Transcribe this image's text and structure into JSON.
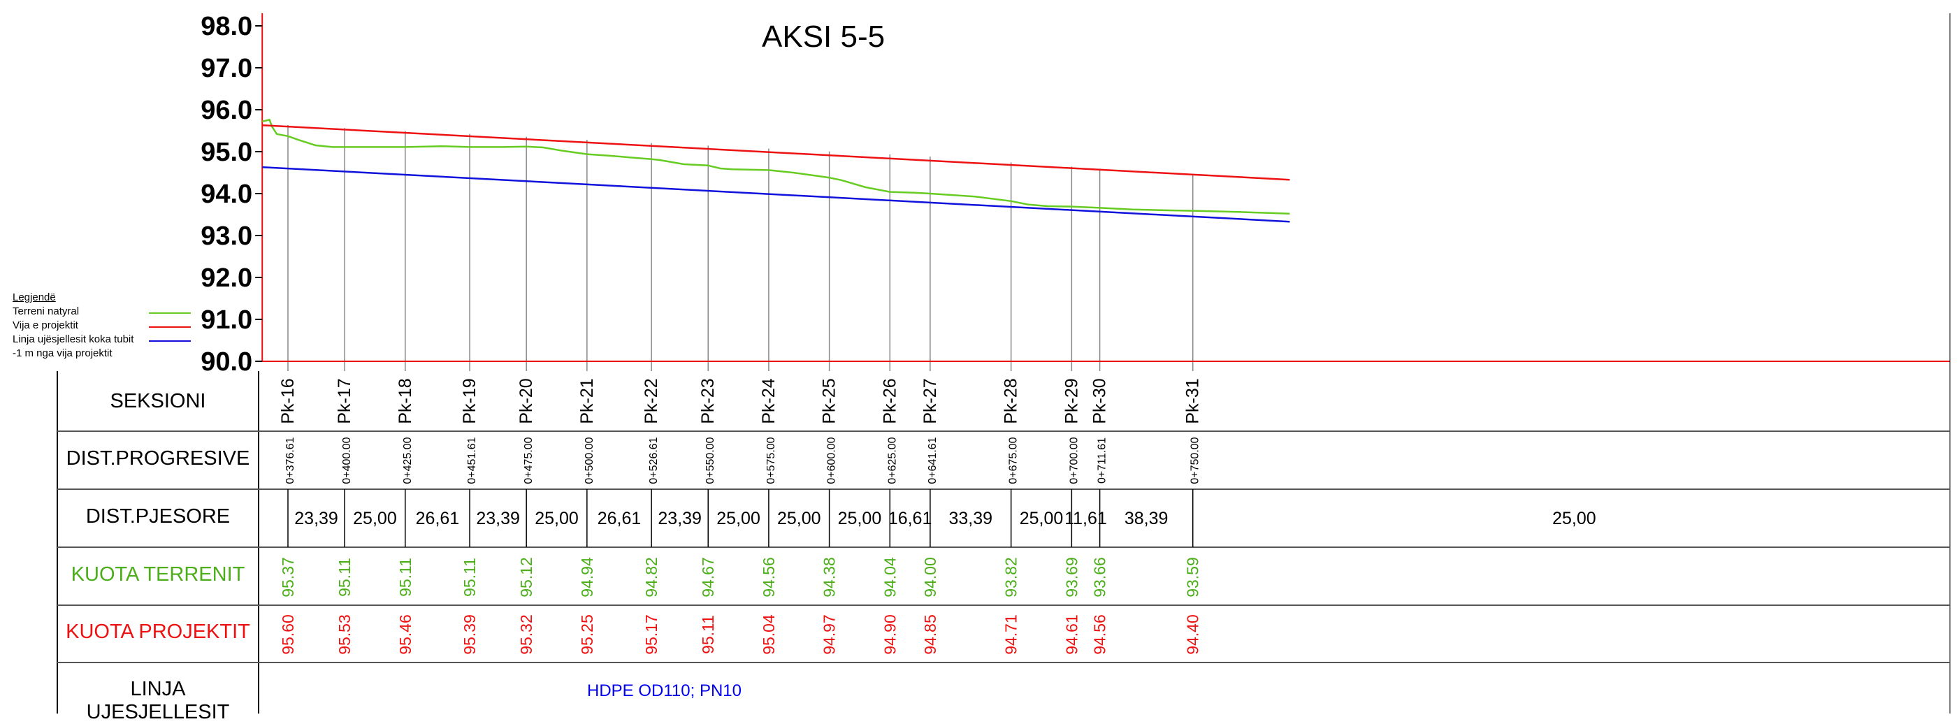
{
  "title": "AKSI 5-5",
  "legend": {
    "header": "Legjendë",
    "items": [
      {
        "label": "Terreni natyral",
        "color": "#66cc22"
      },
      {
        "label": "Vija e projektit",
        "color": "#ee1111"
      },
      {
        "label": "Linja ujësjellesit koka tubit",
        "color": "#1111dd"
      },
      {
        "label": "-1 m nga vija projektit",
        "color": ""
      }
    ]
  },
  "y_axis": {
    "min": 90.0,
    "max": 98.0,
    "ticks": [
      "98.0",
      "97.0",
      "96.0",
      "95.0",
      "94.0",
      "93.0",
      "92.0",
      "91.0",
      "90.0"
    ]
  },
  "table": {
    "row_labels": {
      "seksioni": "SEKSIONI",
      "dist_progresive": "DIST.PROGRESIVE",
      "dist_pjesore": "DIST.PJESORE",
      "kuota_terrenit": "KUOTA TERRENIT",
      "kuota_projektit": "KUOTA PROJEKTIT",
      "linja": "LINJA UJESJELLESIT"
    },
    "pipe_label": "HDPE OD110; PN10",
    "sections": [
      {
        "name": "Pk-16",
        "chainage": 376.61,
        "prog": "0+376.61",
        "terrain": "95.37",
        "project": "95.60"
      },
      {
        "name": "Pk-17",
        "chainage": 400.0,
        "prog": "0+400.00",
        "terrain": "95.11",
        "project": "95.53"
      },
      {
        "name": "Pk-18",
        "chainage": 425.0,
        "prog": "0+425.00",
        "terrain": "95.11",
        "project": "95.46"
      },
      {
        "name": "Pk-19",
        "chainage": 451.61,
        "prog": "0+451.61",
        "terrain": "95.11",
        "project": "95.39"
      },
      {
        "name": "Pk-20",
        "chainage": 475.0,
        "prog": "0+475.00",
        "terrain": "95.12",
        "project": "95.32"
      },
      {
        "name": "Pk-21",
        "chainage": 500.0,
        "prog": "0+500.00",
        "terrain": "94.94",
        "project": "95.25"
      },
      {
        "name": "Pk-22",
        "chainage": 526.61,
        "prog": "0+526.61",
        "terrain": "94.82",
        "project": "95.17"
      },
      {
        "name": "Pk-23",
        "chainage": 550.0,
        "prog": "0+550.00",
        "terrain": "94.67",
        "project": "95.11"
      },
      {
        "name": "Pk-24",
        "chainage": 575.0,
        "prog": "0+575.00",
        "terrain": "94.56",
        "project": "95.04"
      },
      {
        "name": "Pk-25",
        "chainage": 600.0,
        "prog": "0+600.00",
        "terrain": "94.38",
        "project": "94.97"
      },
      {
        "name": "Pk-26",
        "chainage": 625.0,
        "prog": "0+625.00",
        "terrain": "94.04",
        "project": "94.90"
      },
      {
        "name": "Pk-27",
        "chainage": 641.61,
        "prog": "0+641.61",
        "terrain": "94.00",
        "project": "94.85"
      },
      {
        "name": "Pk-28",
        "chainage": 675.0,
        "prog": "0+675.00",
        "terrain": "93.82",
        "project": "94.71"
      },
      {
        "name": "Pk-29",
        "chainage": 700.0,
        "prog": "0+700.00",
        "terrain": "93.69",
        "project": "94.61"
      },
      {
        "name": "Pk-30",
        "chainage": 711.61,
        "prog": "0+711.61",
        "terrain": "93.66",
        "project": "94.56"
      },
      {
        "name": "Pk-31",
        "chainage": 750.0,
        "prog": "0+750.00",
        "terrain": "93.59",
        "project": "94.40"
      }
    ],
    "partial_distances": [
      "23,39",
      "25,00",
      "26,61",
      "23,39",
      "25,00",
      "26,61",
      "23,39",
      "25,00",
      "25,00",
      "25,00",
      "16,61",
      "33,39",
      "25,00",
      "11,61",
      "38,39",
      "25,00"
    ]
  },
  "chart_data": {
    "type": "line",
    "title": "AKSI 5-5",
    "xlabel": "",
    "ylabel": "",
    "ylim": [
      90.0,
      98.0
    ],
    "xlim": [
      366,
      790
    ],
    "series": [
      {
        "name": "Terreni natyral",
        "color": "#66cc22",
        "x": [
          366,
          369,
          370,
          372,
          376.61,
          381,
          388,
          395,
          400,
          410,
          425,
          440,
          451.61,
          465,
          475,
          482,
          490,
          500,
          510,
          526.61,
          530,
          540,
          550,
          555,
          560,
          575,
          585,
          595,
          600,
          605,
          615,
          625,
          635,
          641.61,
          660,
          675,
          682,
          690,
          700,
          711.61,
          725,
          740,
          750,
          770,
          790
        ],
        "y": [
          95.72,
          95.76,
          95.6,
          95.42,
          95.37,
          95.28,
          95.15,
          95.11,
          95.11,
          95.11,
          95.11,
          95.13,
          95.11,
          95.11,
          95.12,
          95.1,
          95.02,
          94.94,
          94.9,
          94.82,
          94.8,
          94.7,
          94.67,
          94.6,
          94.58,
          94.56,
          94.5,
          94.42,
          94.38,
          94.32,
          94.15,
          94.04,
          94.02,
          94.0,
          93.93,
          93.82,
          93.74,
          93.7,
          93.69,
          93.66,
          93.62,
          93.6,
          93.59,
          93.56,
          93.52
        ]
      },
      {
        "name": "Vija e projektit",
        "color": "#ee1111",
        "x": [
          366,
          790
        ],
        "y": [
          95.63,
          94.33
        ]
      },
      {
        "name": "Linja ujësjellesit koka tubit",
        "color": "#1111dd",
        "x": [
          366,
          790
        ],
        "y": [
          94.63,
          93.33
        ]
      }
    ]
  }
}
